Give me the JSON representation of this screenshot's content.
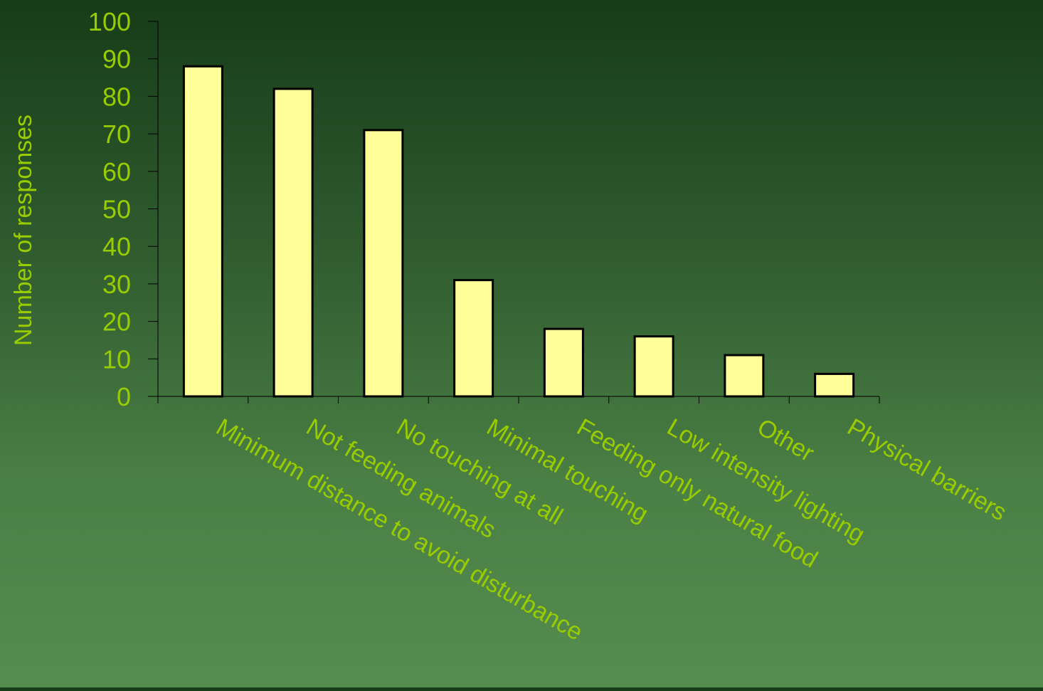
{
  "chart_data": {
    "type": "bar",
    "title": "",
    "xlabel": "",
    "ylabel": "Number of responses",
    "ylim": [
      0,
      100
    ],
    "yticks": [
      0,
      10,
      20,
      30,
      40,
      50,
      60,
      70,
      80,
      90,
      100
    ],
    "grid": false,
    "legend": "none",
    "categories": [
      "Minimum distance to avoid disturbance",
      "Not feeding animals",
      "No touching at all",
      "Minimal touching",
      "Feeding only natural food",
      "Low intensity lighting",
      "Other",
      "Physical barriers"
    ],
    "values": [
      88,
      82,
      71,
      31,
      18,
      16,
      11,
      6
    ]
  },
  "colors": {
    "text": "#99cc00",
    "bar_fill": "#ffff99",
    "bar_stroke": "#000000",
    "axis": "#000000"
  }
}
